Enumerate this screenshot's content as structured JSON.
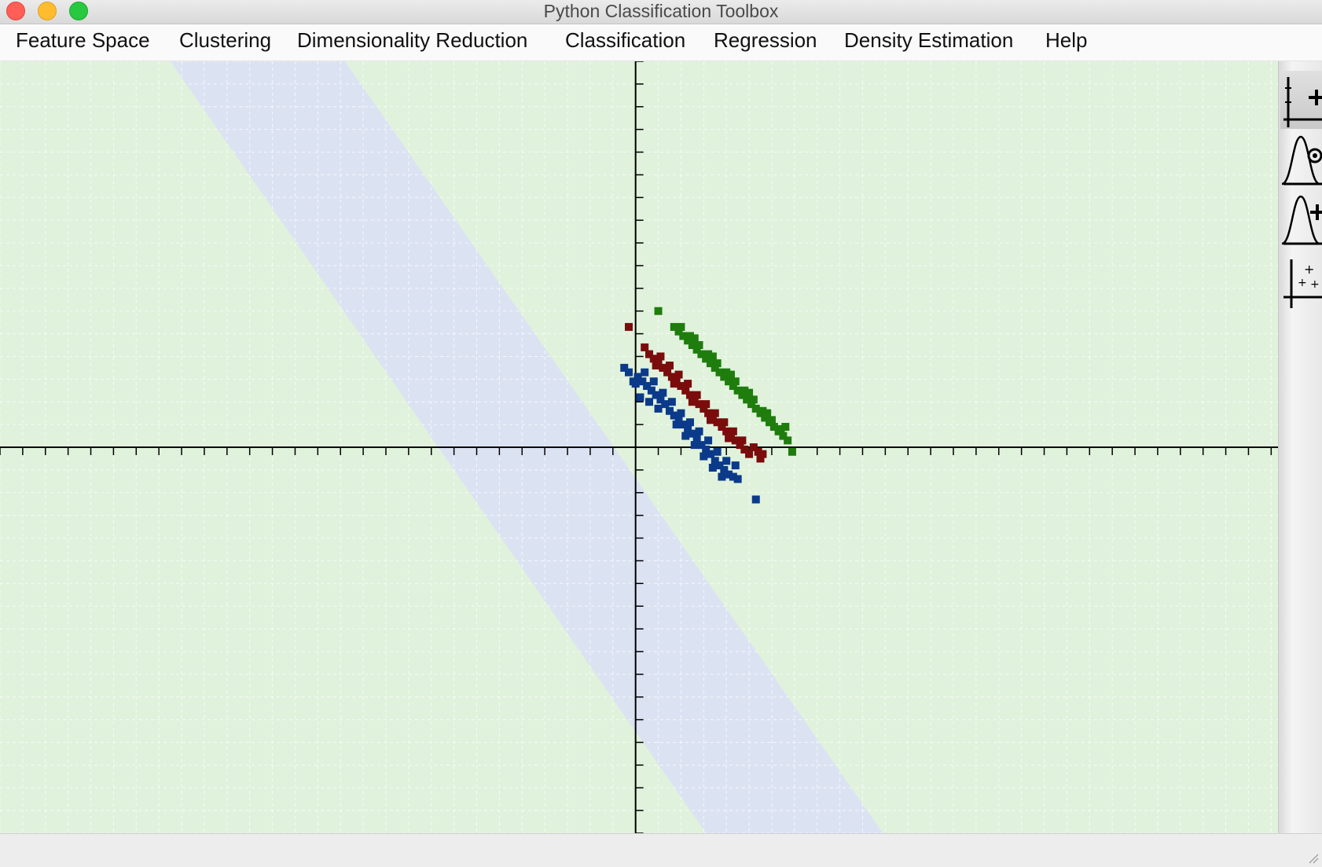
{
  "window": {
    "title": "Python Classification Toolbox"
  },
  "menu": [
    "Feature Space",
    "Clustering",
    "Dimensionality Reduction",
    "Classification",
    "Regression",
    "Density Estimation",
    "Help"
  ],
  "toolbar": {
    "tools": [
      {
        "icon": "add-point-tool-icon",
        "active": true
      },
      {
        "icon": "gaussian-select-tool-icon",
        "active": false
      },
      {
        "icon": "gaussian-add-tool-icon",
        "active": false
      },
      {
        "icon": "scatter-points-tool-icon",
        "active": false
      }
    ]
  },
  "statusbar": {
    "text": ""
  },
  "colors": {
    "background_region": "#e0f2dc",
    "band_region": "#dbe3f3",
    "class_blue": "#0b3a8a",
    "class_red": "#7a0c0c",
    "class_green": "#1e7d0c",
    "axis": "#000000"
  },
  "chart_data": {
    "type": "scatter",
    "title": "",
    "xlabel": "",
    "ylabel": "",
    "xlim": [
      -28,
      28.3
    ],
    "ylim": [
      -17,
      17
    ],
    "grid": true,
    "tick_step": 1,
    "decision_band": {
      "top_edge": {
        "x1": -20.5,
        "y1": 17,
        "x2": 3.1,
        "y2": -17
      },
      "bottom_edge": {
        "x1": -12.8,
        "y1": 17,
        "x2": 10.9,
        "y2": -17
      }
    },
    "series": [
      {
        "color": "#0b3a8a",
        "points": [
          [
            -0.5,
            3.5
          ],
          [
            -0.3,
            3.3
          ],
          [
            0.1,
            3.1
          ],
          [
            0.3,
            2.9
          ],
          [
            0.5,
            2.7
          ],
          [
            0.7,
            2.5
          ],
          [
            0.9,
            2.3
          ],
          [
            1.1,
            2.1
          ],
          [
            1.3,
            1.9
          ],
          [
            1.5,
            1.6
          ],
          [
            1.7,
            1.4
          ],
          [
            1.9,
            1.2
          ],
          [
            2.1,
            1.0
          ],
          [
            2.3,
            0.8
          ],
          [
            2.5,
            0.6
          ],
          [
            2.7,
            0.4
          ],
          [
            2.9,
            0.1
          ],
          [
            3.1,
            -0.1
          ],
          [
            3.3,
            -0.3
          ],
          [
            3.5,
            -0.6
          ],
          [
            3.7,
            -0.8
          ],
          [
            3.9,
            -1.0
          ],
          [
            4.1,
            -1.2
          ],
          [
            4.3,
            -1.3
          ],
          [
            4.5,
            -1.4
          ],
          [
            0.4,
            3.3
          ],
          [
            0.8,
            2.9
          ],
          [
            1.2,
            2.4
          ],
          [
            1.6,
            2.0
          ],
          [
            2.0,
            1.5
          ],
          [
            2.4,
            1.1
          ],
          [
            2.8,
            0.7
          ],
          [
            3.2,
            0.3
          ],
          [
            3.6,
            -0.2
          ],
          [
            4.0,
            -0.6
          ],
          [
            0.2,
            2.2
          ],
          [
            0.6,
            2.0
          ],
          [
            1.0,
            1.7
          ],
          [
            1.8,
            1.0
          ],
          [
            2.2,
            0.5
          ],
          [
            2.6,
            0.1
          ],
          [
            3.0,
            -0.4
          ],
          [
            3.4,
            -0.9
          ],
          [
            3.8,
            -1.3
          ],
          [
            4.4,
            -0.8
          ],
          [
            0.0,
            2.8
          ],
          [
            -0.1,
            2.9
          ],
          [
            5.3,
            -2.3
          ]
        ]
      },
      {
        "color": "#7a0c0c",
        "points": [
          [
            -0.3,
            5.3
          ],
          [
            0.4,
            4.4
          ],
          [
            0.6,
            4.1
          ],
          [
            0.8,
            3.9
          ],
          [
            1.0,
            3.7
          ],
          [
            1.2,
            3.5
          ],
          [
            1.4,
            3.3
          ],
          [
            1.6,
            3.1
          ],
          [
            1.8,
            2.9
          ],
          [
            2.0,
            2.7
          ],
          [
            2.2,
            2.5
          ],
          [
            2.4,
            2.3
          ],
          [
            2.6,
            2.1
          ],
          [
            2.8,
            1.9
          ],
          [
            3.0,
            1.7
          ],
          [
            3.2,
            1.5
          ],
          [
            3.4,
            1.3
          ],
          [
            3.6,
            1.1
          ],
          [
            3.8,
            0.9
          ],
          [
            4.0,
            0.7
          ],
          [
            4.2,
            0.5
          ],
          [
            4.4,
            0.3
          ],
          [
            4.6,
            0.1
          ],
          [
            4.8,
            -0.1
          ],
          [
            5.0,
            -0.3
          ],
          [
            5.5,
            -0.5
          ],
          [
            5.6,
            -0.3
          ],
          [
            1.1,
            4.0
          ],
          [
            1.5,
            3.6
          ],
          [
            1.9,
            3.2
          ],
          [
            2.3,
            2.8
          ],
          [
            2.7,
            2.3
          ],
          [
            3.1,
            1.9
          ],
          [
            3.5,
            1.5
          ],
          [
            3.9,
            1.1
          ],
          [
            4.3,
            0.7
          ],
          [
            4.7,
            0.3
          ],
          [
            5.2,
            0.0
          ],
          [
            0.9,
            3.6
          ],
          [
            1.7,
            2.8
          ],
          [
            2.5,
            2.0
          ],
          [
            3.3,
            1.2
          ],
          [
            4.1,
            0.4
          ],
          [
            5.4,
            -0.2
          ]
        ]
      },
      {
        "color": "#1e7d0c",
        "points": [
          [
            1.0,
            6.0
          ],
          [
            1.7,
            5.3
          ],
          [
            1.9,
            5.1
          ],
          [
            2.1,
            4.9
          ],
          [
            2.3,
            4.7
          ],
          [
            2.5,
            4.5
          ],
          [
            2.7,
            4.3
          ],
          [
            2.9,
            4.1
          ],
          [
            3.1,
            3.9
          ],
          [
            3.3,
            3.7
          ],
          [
            3.5,
            3.5
          ],
          [
            3.7,
            3.3
          ],
          [
            3.9,
            3.1
          ],
          [
            4.1,
            2.9
          ],
          [
            4.3,
            2.7
          ],
          [
            4.5,
            2.5
          ],
          [
            4.7,
            2.3
          ],
          [
            4.9,
            2.1
          ],
          [
            5.1,
            1.9
          ],
          [
            5.3,
            1.7
          ],
          [
            5.5,
            1.5
          ],
          [
            5.7,
            1.3
          ],
          [
            5.9,
            1.1
          ],
          [
            6.1,
            0.9
          ],
          [
            6.3,
            0.7
          ],
          [
            6.5,
            0.5
          ],
          [
            6.7,
            0.3
          ],
          [
            6.9,
            -0.2
          ],
          [
            2.0,
            5.3
          ],
          [
            2.4,
            4.9
          ],
          [
            2.8,
            4.5
          ],
          [
            3.2,
            4.1
          ],
          [
            3.6,
            3.7
          ],
          [
            4.0,
            3.3
          ],
          [
            4.4,
            2.9
          ],
          [
            4.8,
            2.5
          ],
          [
            5.2,
            2.1
          ],
          [
            5.6,
            1.6
          ],
          [
            6.0,
            1.2
          ],
          [
            6.4,
            0.8
          ],
          [
            2.6,
            4.8
          ],
          [
            3.4,
            4.0
          ],
          [
            4.2,
            3.2
          ],
          [
            5.0,
            2.4
          ],
          [
            5.8,
            1.5
          ],
          [
            6.6,
            0.9
          ]
        ]
      }
    ]
  }
}
